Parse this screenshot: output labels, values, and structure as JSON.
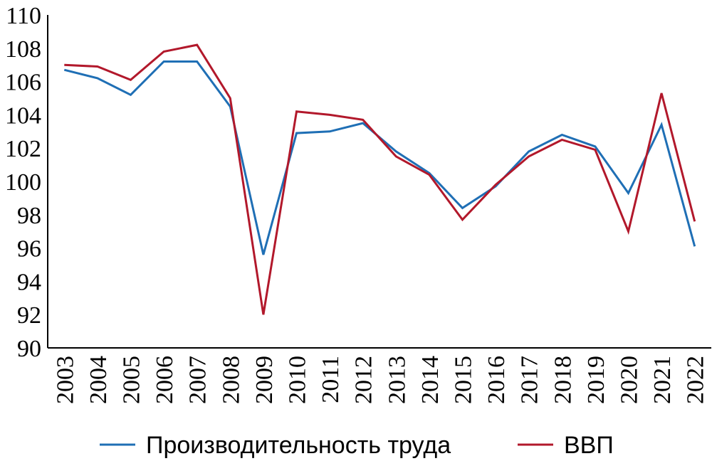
{
  "chart_data": {
    "type": "line",
    "title": "",
    "xlabel": "",
    "ylabel": "",
    "categories": [
      "2003",
      "2004",
      "2005",
      "2006",
      "2007",
      "2008",
      "2009",
      "2010",
      "2011",
      "2012",
      "2013",
      "2014",
      "2015",
      "2016",
      "2017",
      "2018",
      "2019",
      "2020",
      "2021",
      "2022"
    ],
    "ylim": [
      90,
      110
    ],
    "yticks": [
      90,
      92,
      94,
      96,
      98,
      100,
      102,
      104,
      106,
      108,
      110
    ],
    "grid": false,
    "legend_position": "bottom",
    "series": [
      {
        "name": "Производительность труда",
        "color": "#1f6fb5",
        "values": [
          106.7,
          106.2,
          105.2,
          107.2,
          107.2,
          104.5,
          95.6,
          102.9,
          103.0,
          103.5,
          101.8,
          100.5,
          98.4,
          99.7,
          101.8,
          102.8,
          102.1,
          99.3,
          103.4,
          96.1
        ]
      },
      {
        "name": "ВВП",
        "color": "#b2182b",
        "values": [
          107.0,
          106.9,
          106.1,
          107.8,
          108.2,
          105.0,
          92.0,
          104.2,
          104.0,
          103.7,
          101.5,
          100.4,
          97.7,
          99.8,
          101.5,
          102.5,
          101.9,
          97.0,
          105.3,
          97.6
        ]
      }
    ]
  }
}
